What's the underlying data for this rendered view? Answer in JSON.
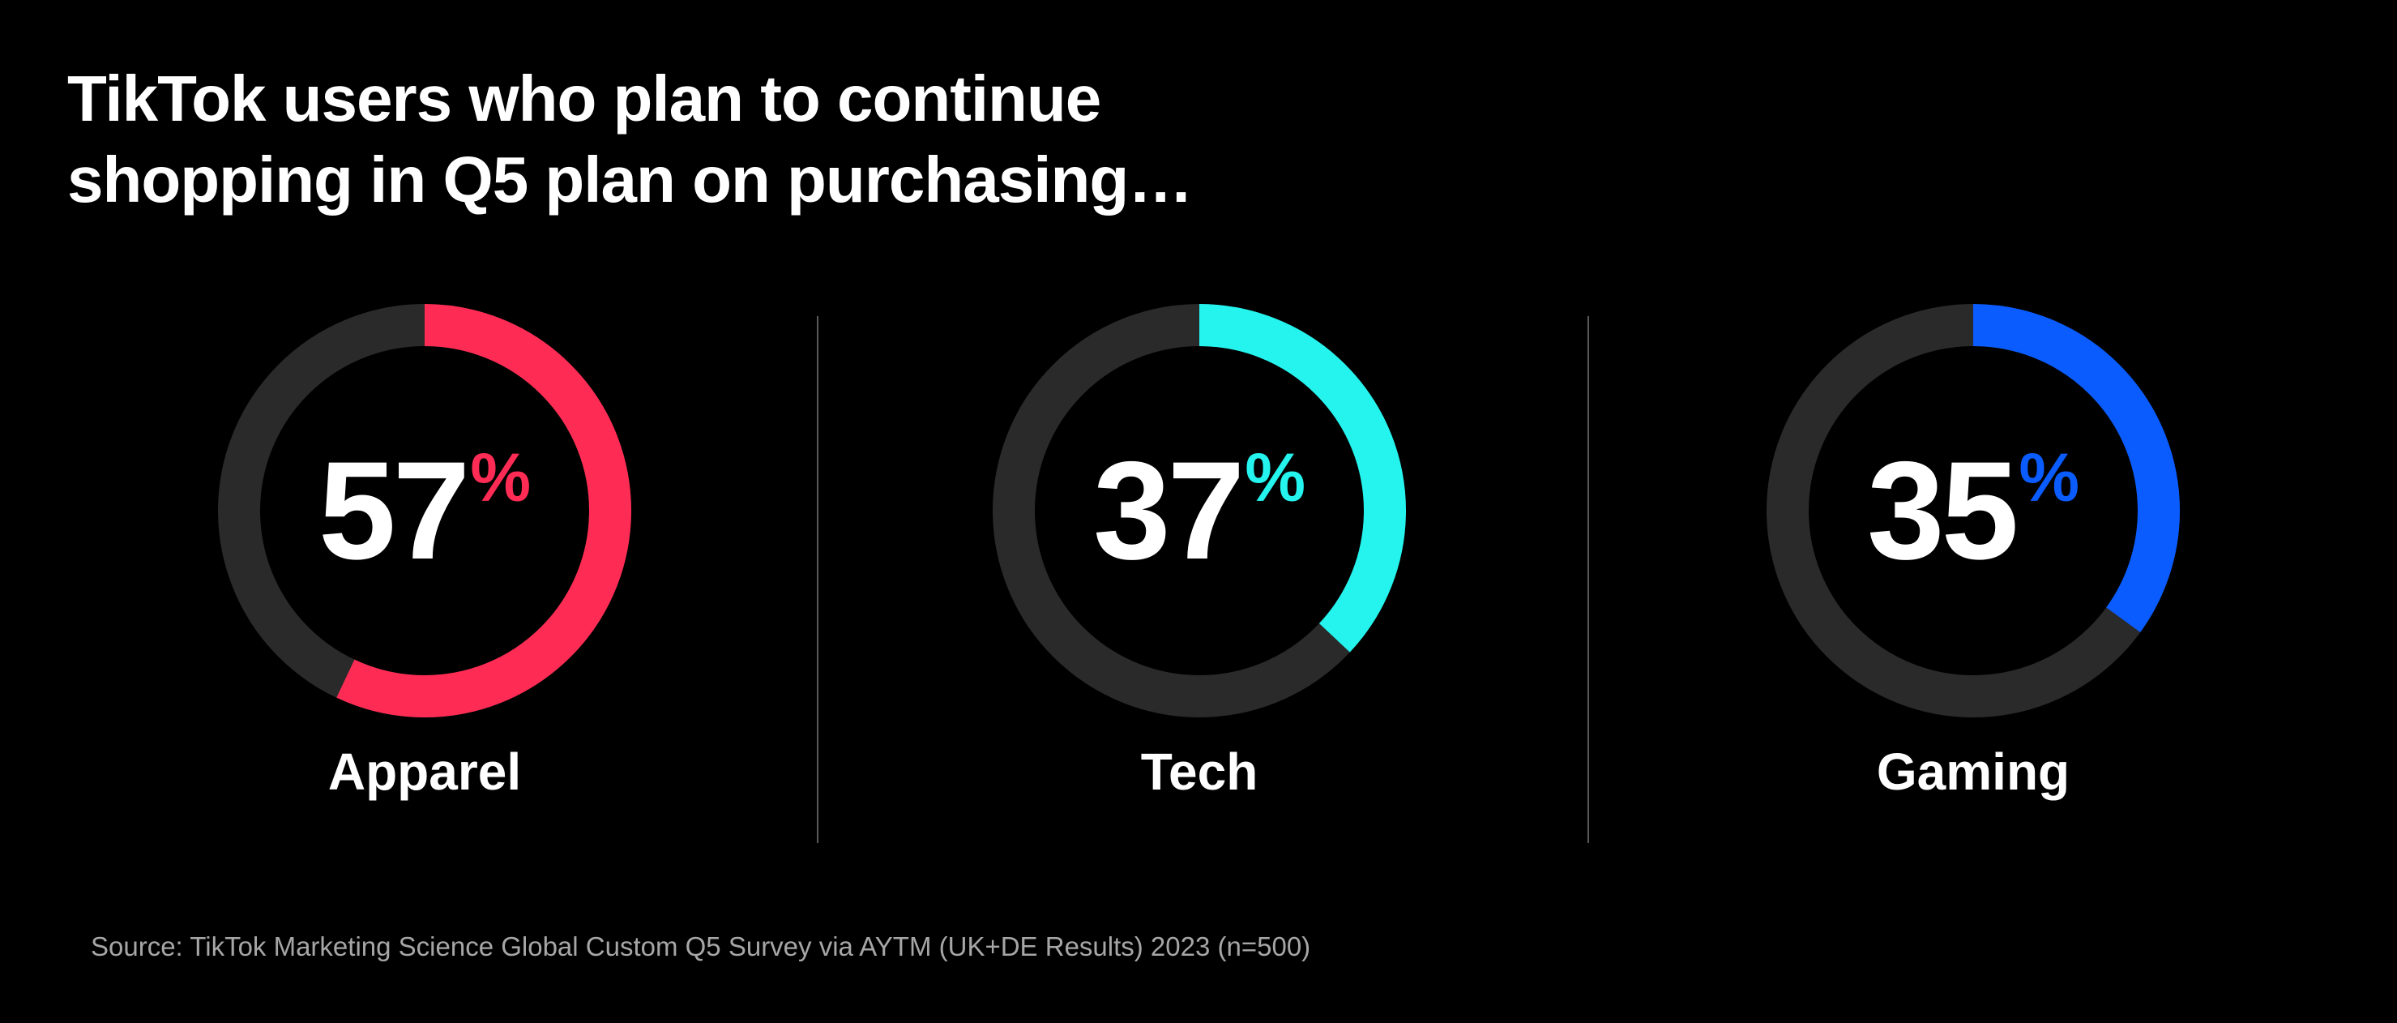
{
  "chart_data": {
    "type": "donut",
    "title": "TikTok users who plan to continue shopping in Q5 plan on purchasing…",
    "title_lines": [
      "TikTok users who plan to continue",
      "shopping in Q5 plan on purchasing…"
    ],
    "unit": "%",
    "categories": [
      "Apparel",
      "Tech",
      "Gaming"
    ],
    "values": [
      57,
      37,
      35
    ],
    "value_labels": [
      "57",
      "37",
      "35"
    ],
    "colors": [
      "#fe2c55",
      "#25f4ee",
      "#0a5cff"
    ],
    "track_color": "#2a2a2a",
    "source": "Source: TikTok Marketing Science Global Custom Q5 Survey via AYTM (UK+DE Results) 2023 (n=500)"
  }
}
